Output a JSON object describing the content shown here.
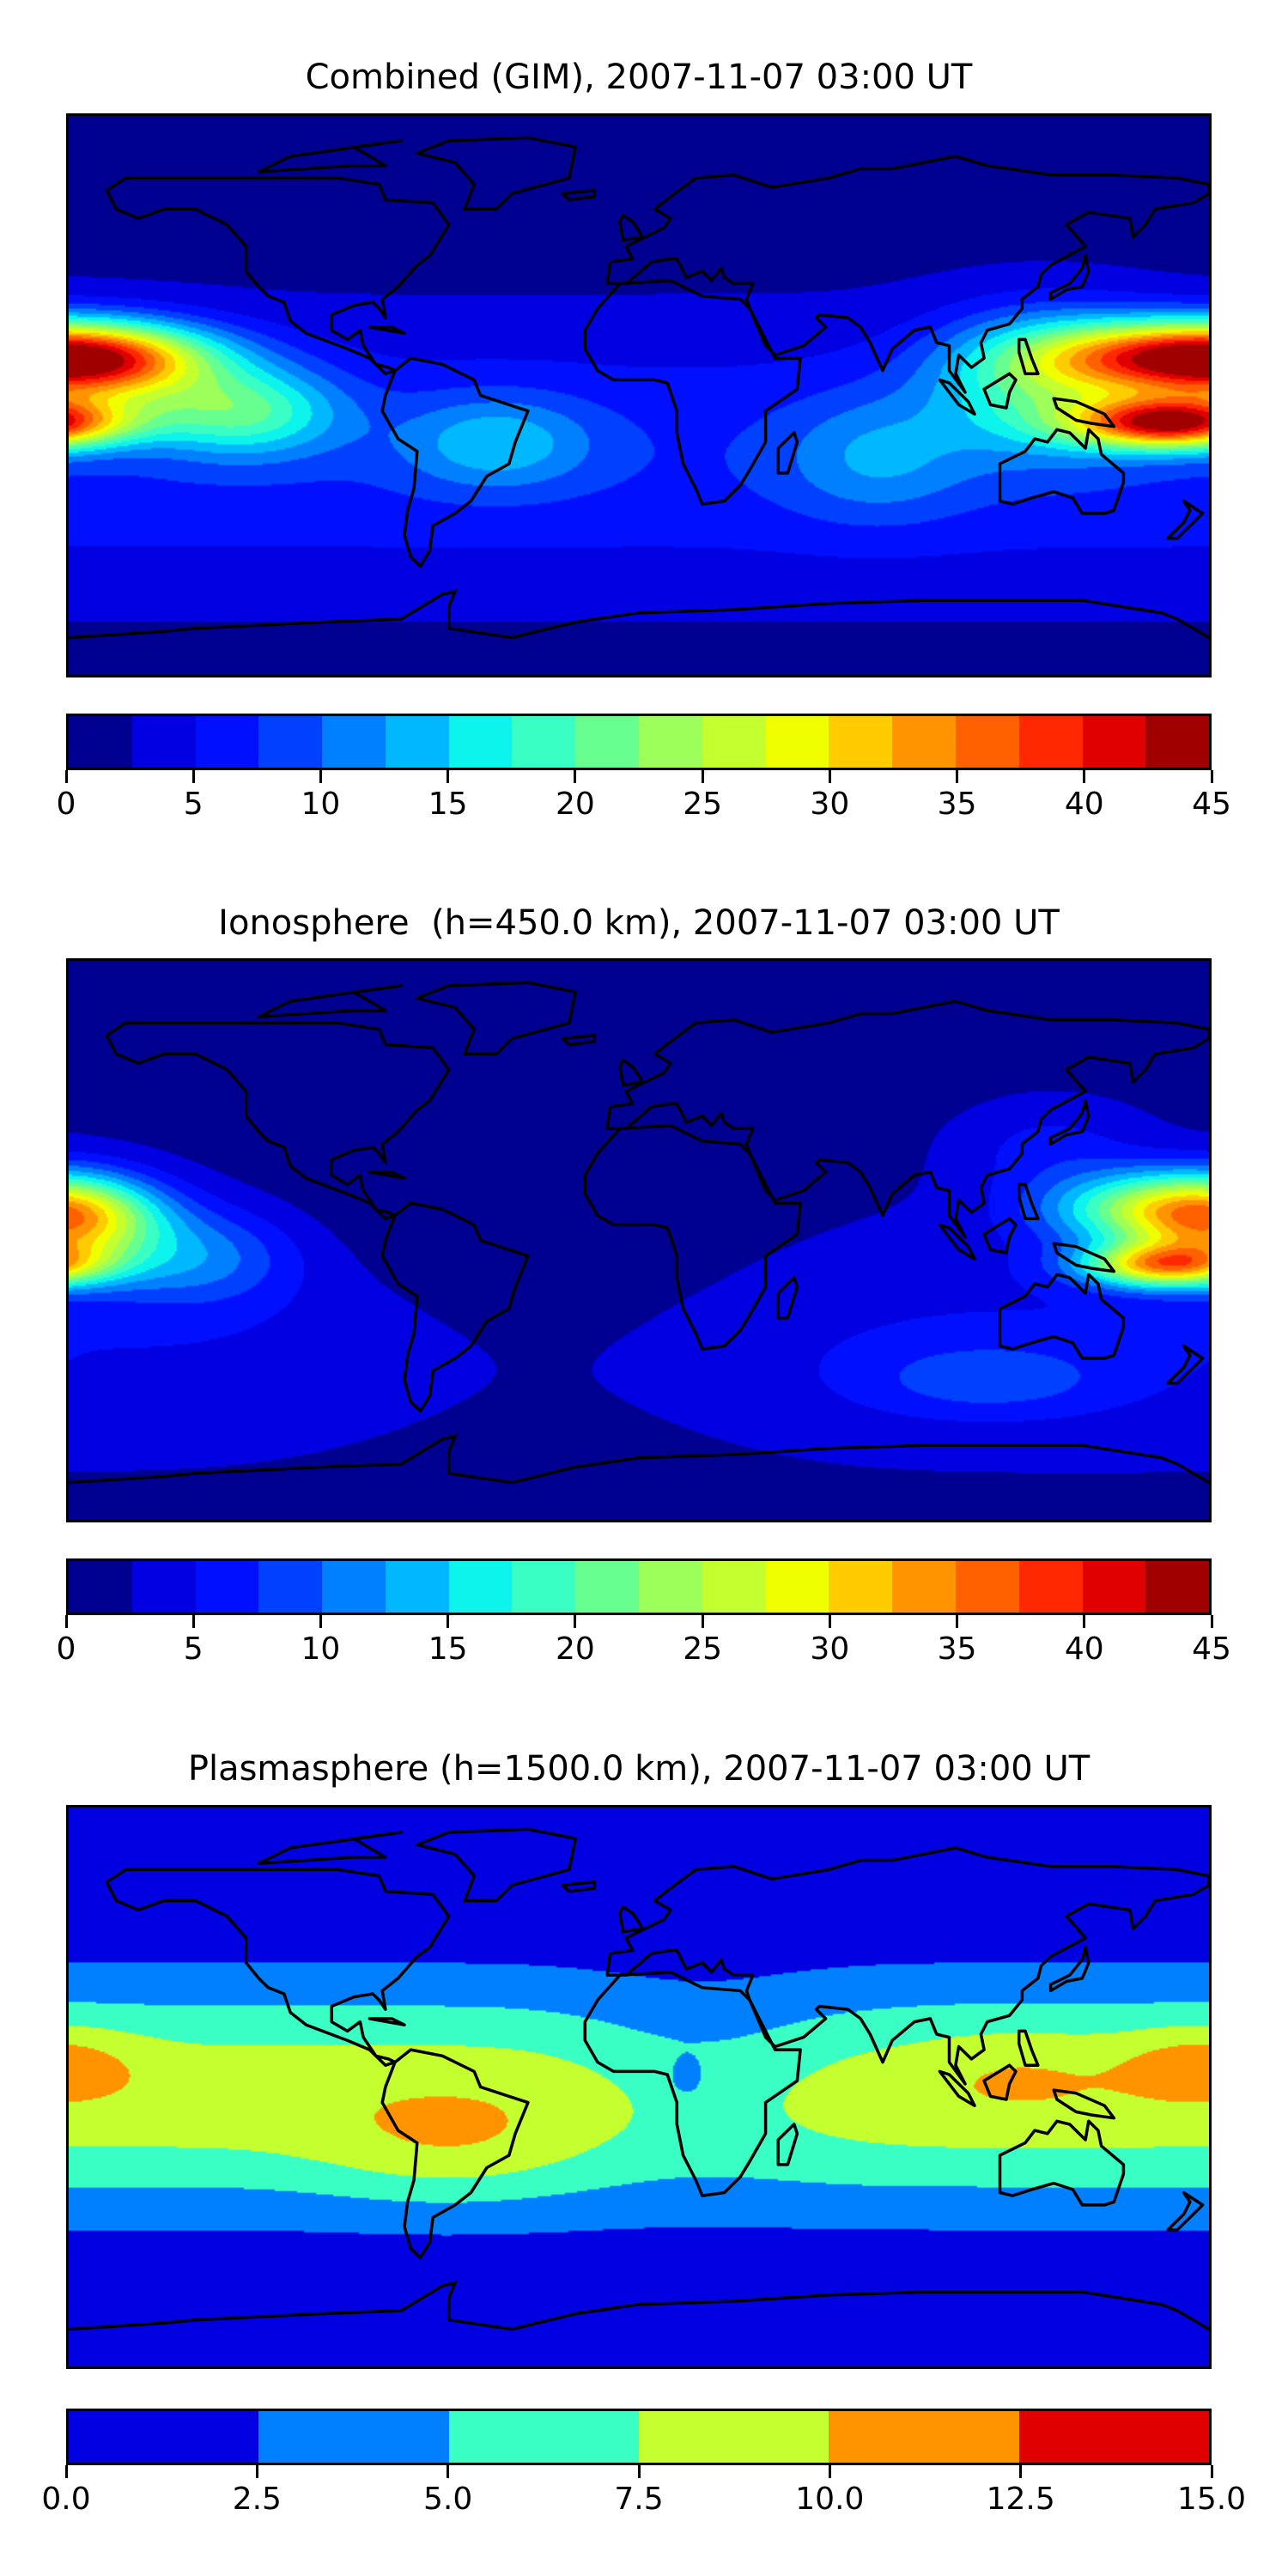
{
  "chart_data": [
    {
      "type": "heatmap",
      "subtype": "filled-contour-map",
      "title": "Combined (GIM), 2007-11-07 03:00 UT",
      "lon_range": [
        -180,
        180
      ],
      "lat_range": [
        -90,
        90
      ],
      "levels": [
        0,
        2.5,
        5,
        7.5,
        10,
        12.5,
        15,
        17.5,
        20,
        22.5,
        25,
        27.5,
        30,
        32.5,
        35,
        37.5,
        40,
        42.5,
        45
      ],
      "colors": [
        "#000090",
        "#0000E0",
        "#0010FF",
        "#0040FF",
        "#0080FF",
        "#00B8FF",
        "#0CF4EC",
        "#3AFFC4",
        "#66FF90",
        "#9CFF5A",
        "#C4FF30",
        "#F0FF00",
        "#FFCC00",
        "#FF9400",
        "#FF6000",
        "#FF2800",
        "#E00000",
        "#A00000"
      ],
      "colorbar_ticks": [
        "0",
        "5",
        "10",
        "15",
        "20",
        "25",
        "30",
        "35",
        "40",
        "45"
      ],
      "field": {
        "base": 1,
        "lat_bands": [
          {
            "amp": 6,
            "lat": -20,
            "sigma": 45
          }
        ],
        "blobs": [
          {
            "amp": -4,
            "lon": -50,
            "lat": 75,
            "sig_lon": 70,
            "sig_lat": 20
          },
          {
            "amp": 30,
            "lon": 175,
            "lat": 13,
            "sig_lon": 45,
            "sig_lat": 11
          },
          {
            "amp": 34,
            "lon": 168,
            "lat": -9,
            "sig_lon": 30,
            "sig_lat": 8
          },
          {
            "amp": 14,
            "lon": 128,
            "lat": 5,
            "sig_lon": 35,
            "sig_lat": 22
          },
          {
            "amp": 16,
            "lon": -172,
            "lat": 8,
            "sig_lon": 35,
            "sig_lat": 14
          },
          {
            "amp": 14,
            "lon": -125,
            "lat": -5,
            "sig_lon": 30,
            "sig_lat": 14
          },
          {
            "amp": 8,
            "lon": -45,
            "lat": -15,
            "sig_lon": 30,
            "sig_lat": 15
          },
          {
            "amp": 6,
            "lon": 75,
            "lat": -20,
            "sig_lon": 30,
            "sig_lat": 20
          }
        ]
      }
    },
    {
      "type": "heatmap",
      "subtype": "filled-contour-map",
      "title": "Ionosphere  (h=450.0 km), 2007-11-07 03:00 UT",
      "lon_range": [
        -180,
        180
      ],
      "lat_range": [
        -90,
        90
      ],
      "levels": [
        0,
        2.5,
        5,
        7.5,
        10,
        12.5,
        15,
        17.5,
        20,
        22.5,
        25,
        27.5,
        30,
        32.5,
        35,
        37.5,
        40,
        42.5,
        45
      ],
      "colors": [
        "#000090",
        "#0000E0",
        "#0010FF",
        "#0040FF",
        "#0080FF",
        "#00B8FF",
        "#0CF4EC",
        "#3AFFC4",
        "#66FF90",
        "#9CFF5A",
        "#C4FF30",
        "#F0FF00",
        "#FFCC00",
        "#FF9400",
        "#FF6000",
        "#FF2800",
        "#E00000",
        "#A00000"
      ],
      "colorbar_ticks": [
        "0",
        "5",
        "10",
        "15",
        "20",
        "25",
        "30",
        "35",
        "40",
        "45"
      ],
      "field": {
        "base": 1.5,
        "lat_bands": [
          {
            "amp": 3.5,
            "lat": -30,
            "sigma": 40
          }
        ],
        "blobs": [
          {
            "amp": -4,
            "lon": -30,
            "lat": 10,
            "sig_lon": 70,
            "sig_lat": 70
          },
          {
            "amp": 21,
            "lon": 165,
            "lat": 10,
            "sig_lon": 35,
            "sig_lat": 12
          },
          {
            "amp": 26,
            "lon": 165,
            "lat": -8,
            "sig_lon": 25,
            "sig_lat": 7
          },
          {
            "amp": 17,
            "lon": -177,
            "lat": 5,
            "sig_lon": 25,
            "sig_lat": 15
          },
          {
            "amp": 8,
            "lon": -140,
            "lat": -5,
            "sig_lon": 30,
            "sig_lat": 15
          },
          {
            "amp": 5,
            "lon": 110,
            "lat": -45,
            "sig_lon": 40,
            "sig_lat": 12
          },
          {
            "amp": 4,
            "lon": 130,
            "lat": 30,
            "sig_lon": 30,
            "sig_lat": 15
          }
        ]
      }
    },
    {
      "type": "heatmap",
      "subtype": "filled-contour-map",
      "title": "Plasmasphere (h=1500.0 km), 2007-11-07 03:00 UT",
      "lon_range": [
        -180,
        180
      ],
      "lat_range": [
        -90,
        90
      ],
      "levels": [
        0,
        2.5,
        5,
        7.5,
        10,
        12.5,
        15
      ],
      "colors": [
        "#0000E0",
        "#0080FF",
        "#3AFFC4",
        "#C4FF30",
        "#FF9400",
        "#E00000"
      ],
      "colorbar_ticks": [
        "0.0",
        "2.5",
        "5.0",
        "7.5",
        "10.0",
        "12.5",
        "15.0"
      ],
      "field": {
        "base": 0,
        "lat_bands": [
          {
            "amp": 9,
            "lat": -3,
            "sigma": 38
          }
        ],
        "blobs": [
          {
            "amp": -2.5,
            "lon": 20,
            "lat": 5,
            "sig_lon": 40,
            "sig_lat": 30
          },
          {
            "amp": -3,
            "lon": 15,
            "lat": 3,
            "sig_lon": 5,
            "sig_lat": 6
          },
          {
            "amp": 3.2,
            "lon": 177,
            "lat": 8,
            "sig_lon": 25,
            "sig_lat": 12
          },
          {
            "amp": 2.5,
            "lon": -60,
            "lat": -20,
            "sig_lon": 40,
            "sig_lat": 18
          },
          {
            "amp": 1.5,
            "lon": 120,
            "lat": 5,
            "sig_lon": 30,
            "sig_lat": 15
          }
        ]
      }
    }
  ]
}
